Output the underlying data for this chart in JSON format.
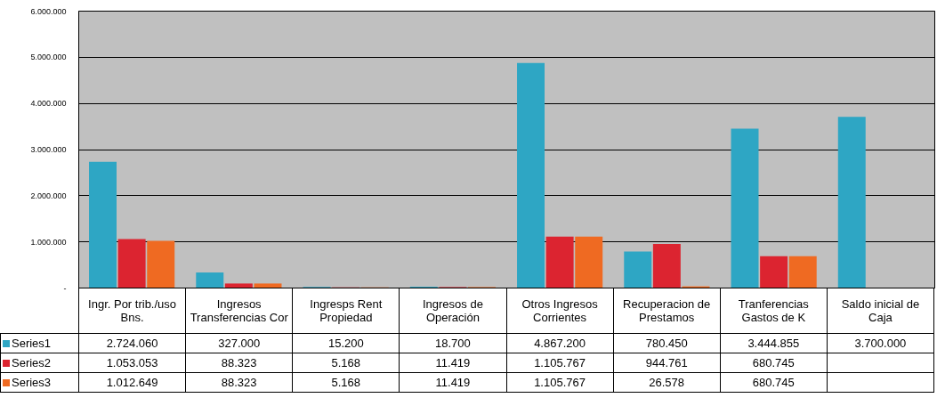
{
  "chart_data": {
    "type": "bar",
    "categories": [
      "Ingr. Por trib./uso Bns.",
      "Ingresos Transferencias Cor",
      "Ingresps Rent Propiedad",
      "Ingresos de Operación",
      "Otros Ingresos Corrientes",
      "Recuperacion de Prestamos",
      "Tranferencias Gastos de K",
      "Saldo inicial de Caja"
    ],
    "series": [
      {
        "name": "Series1",
        "color": "#2ea6c4",
        "values": [
          2724060,
          327000,
          15200,
          18700,
          4867200,
          780450,
          3444855,
          3700000
        ],
        "value_labels": [
          "2.724.060",
          "327.000",
          "15.200",
          "18.700",
          "4.867.200",
          "780.450",
          "3.444.855",
          "3.700.000"
        ]
      },
      {
        "name": "Series2",
        "color": "#dc2430",
        "values": [
          1053053,
          88323,
          5168,
          11419,
          1105767,
          944761,
          680745,
          null
        ],
        "value_labels": [
          "1.053.053",
          "88.323",
          "5.168",
          "11.419",
          "1.105.767",
          "944.761",
          "680.745",
          null
        ]
      },
      {
        "name": "Series3",
        "color": "#ef6a22",
        "values": [
          1012649,
          88323,
          5168,
          11419,
          1105767,
          26578,
          680745,
          null
        ],
        "value_labels": [
          "1.012.649",
          "88.323",
          "5.168",
          "11.419",
          "1.105.767",
          "26.578",
          "680.745",
          null
        ]
      }
    ],
    "ylim": [
      0,
      6000000
    ],
    "yticks": [
      {
        "value": 0,
        "label": "-"
      },
      {
        "value": 1000000,
        "label": "1.000.000"
      },
      {
        "value": 2000000,
        "label": "2.000.000"
      },
      {
        "value": 3000000,
        "label": "3.000.000"
      },
      {
        "value": 4000000,
        "label": "4.000.000"
      },
      {
        "value": 5000000,
        "label": "5.000.000"
      },
      {
        "value": 6000000,
        "label": "6.000.000"
      }
    ],
    "grid": "y",
    "legend": "bottom"
  }
}
